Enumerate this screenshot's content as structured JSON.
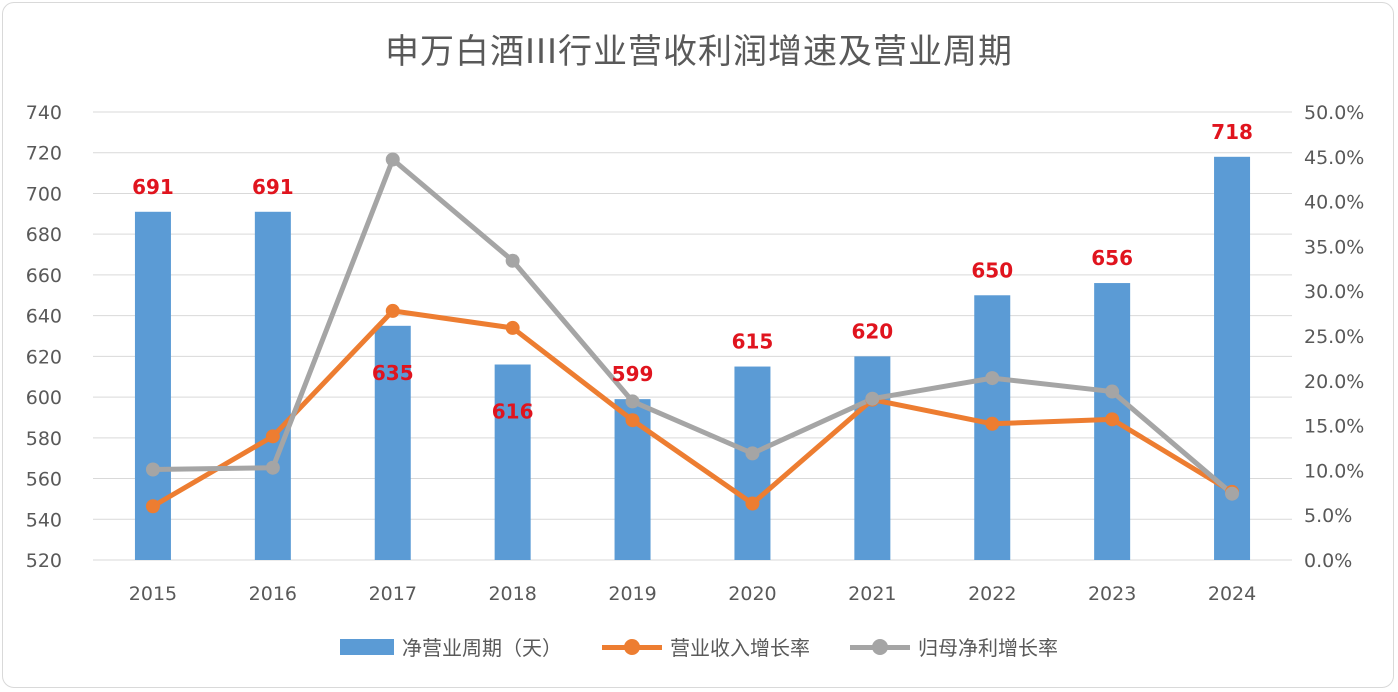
{
  "chart_data": {
    "type": "bar",
    "title": "申万白酒III行业营收利润增速及营业周期",
    "categories": [
      "2015",
      "2016",
      "2017",
      "2018",
      "2019",
      "2020",
      "2021",
      "2022",
      "2023",
      "2024"
    ],
    "series": [
      {
        "name": "净营业周期（天）",
        "type": "bar",
        "axis": "left",
        "color": "#5b9bd5",
        "values": [
          691,
          691,
          635,
          616,
          599,
          615,
          620,
          650,
          656,
          718
        ]
      },
      {
        "name": "营业收入增长率",
        "type": "line",
        "axis": "right",
        "color": "#ed7d31",
        "values": [
          6.0,
          13.8,
          27.8,
          25.9,
          15.6,
          6.3,
          17.9,
          15.2,
          15.7,
          7.6
        ]
      },
      {
        "name": "归母净利增长率",
        "type": "line",
        "axis": "right",
        "color": "#a5a5a5",
        "values": [
          10.1,
          10.3,
          44.7,
          33.4,
          17.7,
          11.9,
          18.0,
          20.3,
          18.8,
          7.4
        ]
      }
    ],
    "data_labels": [
      "691",
      "691",
      "635",
      "616",
      "599",
      "615",
      "620",
      "650",
      "656",
      "718"
    ],
    "y_left": {
      "min": 520,
      "max": 740,
      "step": 20,
      "ticks": [
        "520",
        "540",
        "560",
        "580",
        "600",
        "620",
        "640",
        "660",
        "680",
        "700",
        "720",
        "740"
      ]
    },
    "y_right": {
      "min": 0,
      "max": 50,
      "step": 5,
      "ticks": [
        "0.0%",
        "5.0%",
        "10.0%",
        "15.0%",
        "20.0%",
        "25.0%",
        "30.0%",
        "35.0%",
        "40.0%",
        "45.0%",
        "50.0%"
      ]
    },
    "grid": true,
    "legend_position": "bottom"
  }
}
